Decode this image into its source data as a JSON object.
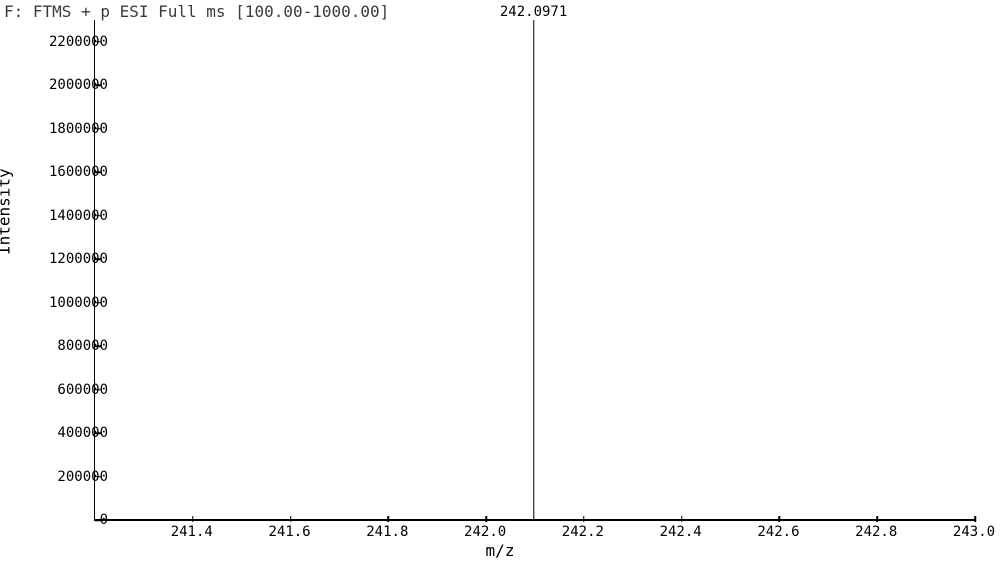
{
  "spectrum": {
    "title": "F: FTMS + p ESI Full ms [100.00-1000.00]",
    "xlabel": "m/z",
    "ylabel": "Intensity",
    "xlim": [
      241.2,
      243.0
    ],
    "ylim": [
      0,
      2300000
    ],
    "xtick_step": 0.2,
    "ytick_step": 200000,
    "xticks": [
      "241.4",
      "241.6",
      "241.8",
      "242.0",
      "242.2",
      "242.4",
      "242.6",
      "242.8",
      "243.0"
    ],
    "yticks": [
      "0",
      "200000",
      "400000",
      "600000",
      "800000",
      "1000000",
      "1200000",
      "1400000",
      "1600000",
      "1800000",
      "2000000",
      "2200000"
    ],
    "background_color": "#ffffff",
    "axis_color": "#000000",
    "tick_fontsize": 14,
    "label_fontsize": 16,
    "peaks": [
      {
        "mz": 242.0971,
        "intensity": 2300000,
        "label": "242.0971"
      }
    ]
  }
}
